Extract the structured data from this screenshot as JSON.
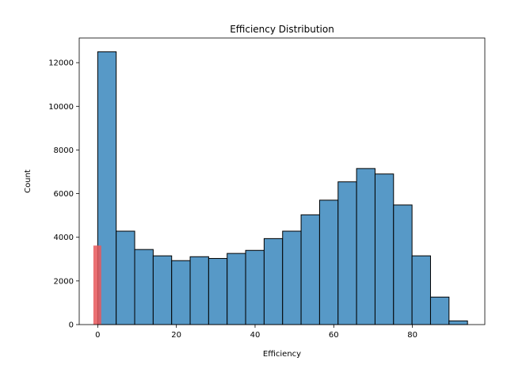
{
  "chart_data": {
    "type": "bar",
    "title": "Efficiency Distribution",
    "xlabel": "Efficiency",
    "ylabel": "Count",
    "xlim": [
      -4.7,
      98.4
    ],
    "ylim": [
      0,
      13130
    ],
    "x_ticks": [
      0,
      20,
      40,
      60,
      80
    ],
    "y_ticks": [
      0,
      2000,
      4000,
      6000,
      8000,
      10000,
      12000
    ],
    "grid": false,
    "series": [
      {
        "bin_edges": [
          0,
          4.7,
          9.4,
          14.1,
          18.8,
          23.5,
          28.2,
          32.9,
          37.6,
          42.3,
          47.0,
          51.7,
          56.4,
          61.1,
          65.8,
          70.5,
          75.2,
          79.9,
          84.6,
          89.3,
          94.0
        ],
        "values": [
          12500,
          4280,
          3440,
          3150,
          2930,
          3110,
          3030,
          3260,
          3400,
          3940,
          4280,
          5030,
          5700,
          6540,
          7150,
          6900,
          5480,
          3150,
          1260,
          170
        ],
        "color": "#5799c7"
      },
      {
        "bin_edges": [
          -1.1,
          0.9
        ],
        "values": [
          3620
        ],
        "color": "#e8585c"
      }
    ]
  }
}
